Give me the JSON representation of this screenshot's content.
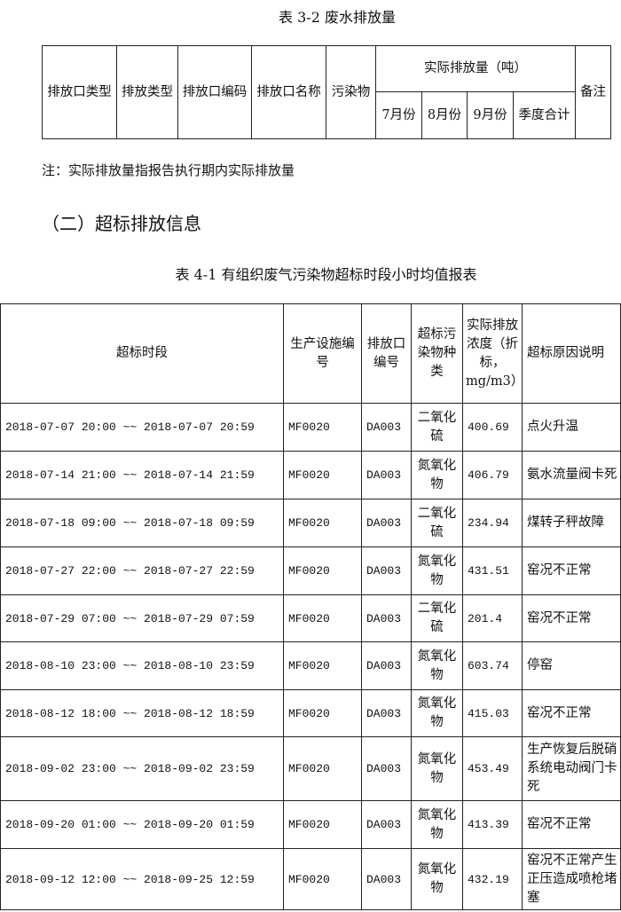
{
  "table3_2": {
    "title": "表 3-2  废水排放量",
    "headers": {
      "outlet_type": "排放口类型",
      "discharge_type": "排放类型",
      "outlet_code": "排放口编码",
      "outlet_name": "排放口名称",
      "pollutant": "污染物",
      "actual": "实际排放量（吨）",
      "remark": "备注",
      "jul": "7月份",
      "aug": "8月份",
      "sep": "9月份",
      "quarter": "季度合计"
    }
  },
  "note": "注：实际排放量指报告执行期内实际排放量",
  "section_heading": "（二）超标排放信息",
  "table4_1": {
    "title": "表 4-1  有组织废气污染物超标时段小时均值报表",
    "headers": [
      "超标时段",
      "生产设施编号",
      "排放口编号",
      "超标污染物种类",
      "实际排放浓度（折标，mg/m3）",
      "超标原因说明"
    ],
    "rows": [
      [
        "2018-07-07 20:00 ~~ 2018-07-07 20:59",
        "MF0020",
        "DA003",
        "二氧化硫",
        "400.69",
        "点火升温"
      ],
      [
        "2018-07-14 21:00 ~~ 2018-07-14 21:59",
        "MF0020",
        "DA003",
        "氮氧化物",
        "406.79",
        "氨水流量阀卡死"
      ],
      [
        "2018-07-18 09:00 ~~ 2018-07-18 09:59",
        "MF0020",
        "DA003",
        "二氧化硫",
        "234.94",
        "煤转子秤故障"
      ],
      [
        "2018-07-27 22:00 ~~ 2018-07-27 22:59",
        "MF0020",
        "DA003",
        "氮氧化物",
        "431.51",
        "窑况不正常"
      ],
      [
        "2018-07-29 07:00 ~~ 2018-07-29 07:59",
        "MF0020",
        "DA003",
        "二氧化硫",
        "201.4",
        "窑况不正常"
      ],
      [
        "2018-08-10 23:00 ~~ 2018-08-10 23:59",
        "MF0020",
        "DA003",
        "氮氧化物",
        "603.74",
        "停窑"
      ],
      [
        "2018-08-12 18:00 ~~ 2018-08-12 18:59",
        "MF0020",
        "DA003",
        "氮氧化物",
        "415.03",
        "窑况不正常"
      ],
      [
        "2018-09-02 23:00 ~~ 2018-09-02 23:59",
        "MF0020",
        "DA003",
        "氮氧化物",
        "453.49",
        "生产恢复后脱硝系统电动阀门卡死"
      ],
      [
        "2018-09-20 01:00 ~~ 2018-09-20 01:59",
        "MF0020",
        "DA003",
        "氮氧化物",
        "413.39",
        "窑况不正常"
      ],
      [
        "2018-09-12 12:00 ~~ 2018-09-25 12:59",
        "MF0020",
        "DA003",
        "氮氧化物",
        "432.19",
        "窑况不正常产生正压造成喷枪堵塞"
      ]
    ]
  }
}
